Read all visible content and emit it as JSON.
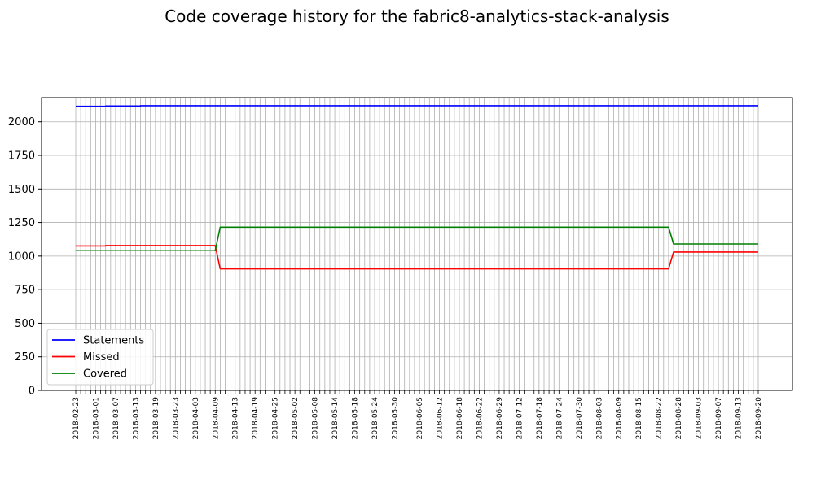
{
  "chart_data": {
    "type": "line",
    "title": "Code coverage history for the fabric8-analytics-stack-analysis",
    "xlabel": "",
    "ylabel": "",
    "ylim": [
      0,
      2180
    ],
    "yticks": [
      0,
      250,
      500,
      750,
      1000,
      1250,
      1500,
      1750,
      2000
    ],
    "grid": true,
    "legend_position": "lower-left",
    "x_start_date": "2018-02-23",
    "x_end_date": "2018-09-20",
    "x_count": 138,
    "xtick_labels": [
      "2018-02-23",
      "2018-03-01",
      "2018-03-07",
      "2018-03-13",
      "2018-03-19",
      "2018-03-23",
      "2018-04-03",
      "2018-04-09",
      "2018-04-13",
      "2018-04-19",
      "2018-04-25",
      "2018-05-02",
      "2018-05-08",
      "2018-05-14",
      "2018-05-18",
      "2018-05-24",
      "2018-05-30",
      "2018-06-05",
      "2018-06-12",
      "2018-06-18",
      "2018-06-22",
      "2018-06-29",
      "2018-07-12",
      "2018-07-18",
      "2018-07-24",
      "2018-07-30",
      "2018-08-03",
      "2018-08-09",
      "2018-08-15",
      "2018-08-22",
      "2018-08-28",
      "2018-09-03",
      "2018-09-07",
      "2018-09-13",
      "2018-09-20"
    ],
    "series": [
      {
        "name": "Statements",
        "color": "#0000ff",
        "segments": [
          {
            "from": 0,
            "to": 6,
            "value": 2115
          },
          {
            "from": 6,
            "to": 13,
            "value": 2118
          },
          {
            "from": 13,
            "to": 137,
            "value": 2120
          }
        ]
      },
      {
        "name": "Missed",
        "color": "#ff0000",
        "segments": [
          {
            "from": 0,
            "to": 6,
            "value": 1075
          },
          {
            "from": 6,
            "to": 28,
            "value": 1078
          },
          {
            "from": 29,
            "to": 119,
            "value": 905
          },
          {
            "from": 120,
            "to": 137,
            "value": 1030
          }
        ]
      },
      {
        "name": "Covered",
        "color": "#008000",
        "segments": [
          {
            "from": 0,
            "to": 28,
            "value": 1040
          },
          {
            "from": 29,
            "to": 119,
            "value": 1215
          },
          {
            "from": 120,
            "to": 137,
            "value": 1090
          }
        ]
      }
    ]
  }
}
